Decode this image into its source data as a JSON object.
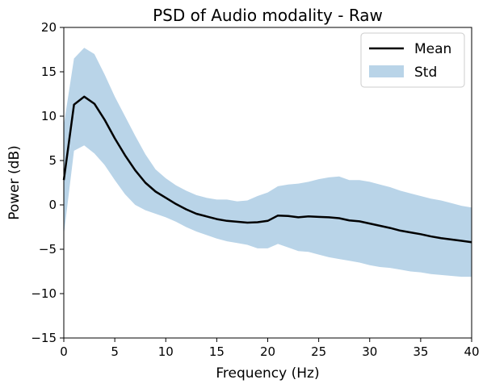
{
  "chart_data": {
    "type": "line",
    "title": "PSD of Audio modality - Raw",
    "xlabel": "Frequency (Hz)",
    "ylabel": "Power (dB)",
    "xlim": [
      0,
      40
    ],
    "ylim": [
      -15,
      20
    ],
    "x_ticks": [
      "0",
      "5",
      "10",
      "15",
      "20",
      "25",
      "30",
      "35",
      "40"
    ],
    "y_ticks": [
      "20",
      "15",
      "10",
      "5",
      "0",
      "−5",
      "−10",
      "−15"
    ],
    "grid": false,
    "legend_position": "top-right",
    "x": [
      0,
      1,
      2,
      3,
      4,
      5,
      6,
      7,
      8,
      9,
      10,
      11,
      12,
      13,
      14,
      15,
      16,
      17,
      18,
      19,
      20,
      21,
      22,
      23,
      24,
      25,
      26,
      27,
      28,
      29,
      30,
      31,
      32,
      33,
      34,
      35,
      36,
      37,
      38,
      39,
      40
    ],
    "series": [
      {
        "name": "Mean",
        "kind": "line",
        "color": "#000000",
        "values": [
          2.8,
          11.3,
          12.2,
          11.4,
          9.6,
          7.5,
          5.6,
          3.9,
          2.5,
          1.5,
          0.8,
          0.1,
          -0.5,
          -1.0,
          -1.3,
          -1.6,
          -1.8,
          -1.9,
          -2.0,
          -1.95,
          -1.8,
          -1.2,
          -1.25,
          -1.4,
          -1.3,
          -1.35,
          -1.4,
          -1.5,
          -1.75,
          -1.85,
          -2.1,
          -2.35,
          -2.6,
          -2.9,
          -3.1,
          -3.3,
          -3.55,
          -3.75,
          -3.9,
          -4.05,
          -4.2
        ]
      },
      {
        "name": "Std",
        "kind": "band",
        "color": "#b9d4e8",
        "upper": [
          9.0,
          16.5,
          17.7,
          17.0,
          14.7,
          12.2,
          10.0,
          7.8,
          5.7,
          4.0,
          3.0,
          2.2,
          1.6,
          1.1,
          0.8,
          0.6,
          0.6,
          0.4,
          0.5,
          1.0,
          1.4,
          2.1,
          2.3,
          2.4,
          2.6,
          2.9,
          3.1,
          3.2,
          2.8,
          2.8,
          2.6,
          2.3,
          2.0,
          1.6,
          1.3,
          1.0,
          0.7,
          0.5,
          0.2,
          -0.1,
          -0.3
        ],
        "lower": [
          -3.4,
          6.1,
          6.7,
          5.8,
          4.5,
          2.8,
          1.2,
          0.0,
          -0.6,
          -1.0,
          -1.4,
          -1.9,
          -2.5,
          -3.0,
          -3.4,
          -3.8,
          -4.1,
          -4.3,
          -4.5,
          -4.9,
          -4.9,
          -4.4,
          -4.8,
          -5.2,
          -5.3,
          -5.6,
          -5.9,
          -6.1,
          -6.3,
          -6.5,
          -6.8,
          -7.0,
          -7.1,
          -7.3,
          -7.5,
          -7.6,
          -7.8,
          -7.9,
          -8.0,
          -8.1,
          -8.1
        ]
      }
    ]
  }
}
